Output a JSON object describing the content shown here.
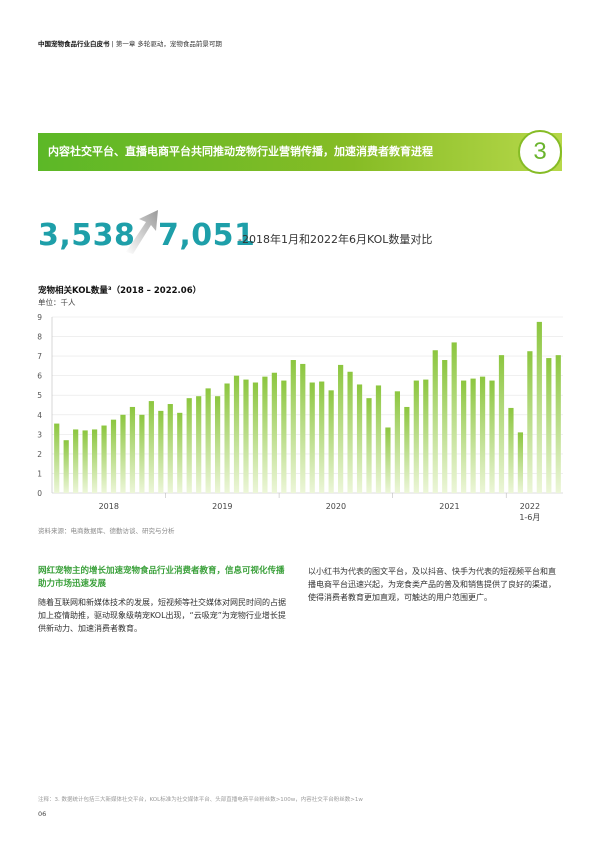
{
  "header": {
    "report_title": "中国宠物食品行业白皮书",
    "separator": "|",
    "chapter": "第一章 多轮驱动，宠物食品前景可期"
  },
  "banner": {
    "text": "内容社交平台、直播电商平台共同推动宠物行业营销传播，加速消费者教育进程",
    "number": "3"
  },
  "highlight": {
    "value_2018": "3,538",
    "value_2022": "7,051",
    "comparison_text": "-2018年1月和2022年6月KOL数量对比"
  },
  "chart_title": "宠物相关KOL数量³（2018 – 2022.06）",
  "chart_unit": "单位：千人",
  "chart_data": {
    "type": "bar",
    "title": "宠物相关KOL数量³（2018 – 2022.06）",
    "ylabel": "单位：千人",
    "ylim": [
      0,
      9
    ],
    "yticks": [
      "0",
      "1",
      "2",
      "3",
      "4",
      "5",
      "6",
      "7",
      "8",
      "9"
    ],
    "grid": true,
    "x_labels": [
      {
        "label": "2018",
        "index": 5.5
      },
      {
        "label": "2019",
        "index": 17.5
      },
      {
        "label": "2020",
        "index": 29.5
      },
      {
        "label": "2021",
        "index": 41.5
      },
      {
        "label": "2022",
        "index": 50
      },
      {
        "label": "1-6月",
        "index": 50
      }
    ],
    "year_separators": [
      11.5,
      23.5,
      35.5,
      47.5
    ],
    "values": [
      3.55,
      2.7,
      3.25,
      3.2,
      3.25,
      3.45,
      3.75,
      4.0,
      4.4,
      4.0,
      4.7,
      4.2,
      4.55,
      4.1,
      4.85,
      4.95,
      5.35,
      4.95,
      5.6,
      6.0,
      5.8,
      5.65,
      5.95,
      6.15,
      5.75,
      6.8,
      6.6,
      5.65,
      5.7,
      5.25,
      6.55,
      6.2,
      5.55,
      4.85,
      5.5,
      3.35,
      5.2,
      4.4,
      5.75,
      5.8,
      7.3,
      6.8,
      7.7,
      5.75,
      5.85,
      5.95,
      5.75,
      7.05,
      4.35,
      3.1,
      7.25,
      8.75,
      6.9,
      7.05
    ],
    "colors": {
      "bar_top": "#8cc63f",
      "bar_bottom": "#ecf6d8",
      "grid": "#e6e6e6"
    }
  },
  "source_note": "资料来源：电商数据库、德勤访谈、研究与分析",
  "left_column": {
    "heading": "网红宠物主的增长加速宠物食品行业消费者教育，信息可视化传播助力市场迅速发展",
    "body": "随着互联网和新媒体技术的发展，短视频等社交媒体对网民时间的占据加上疫情助推，驱动现象级萌宠KOL出现，“云吸宠”为宠物行业增长提供新动力、加速消费者教育。"
  },
  "right_column": {
    "body": "以小红书为代表的图文平台，及以抖音、快手为代表的短视频平台和直播电商平台迅速兴起，为宠食类产品的普及和销售提供了良好的渠道，使得消费者教育更加直观，可触达的用户范围更广。"
  },
  "footnote": "注释：3. 数据统计包括三大新媒体社交平台，KOL标准为社交媒体平台、头部直播电商平台粉丝数>100w，内容社交平台粉丝数>1w",
  "page_number": "06",
  "colors": {
    "accent_green": "#86bc25",
    "teal": "#1e9fa9",
    "heading_green": "#3aa03a"
  }
}
